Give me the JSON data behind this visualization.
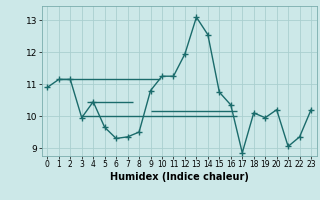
{
  "title": "",
  "xlabel": "Humidex (Indice chaleur)",
  "ylabel": "",
  "background_color": "#cce8e8",
  "line_color": "#1a6b6b",
  "grid_color": "#aacfcf",
  "x_values": [
    0,
    1,
    2,
    3,
    4,
    5,
    6,
    7,
    8,
    9,
    10,
    11,
    12,
    13,
    14,
    15,
    16,
    17,
    18,
    19,
    20,
    21,
    22,
    23
  ],
  "y_values": [
    10.9,
    11.15,
    11.15,
    9.95,
    10.45,
    9.65,
    9.3,
    9.35,
    9.5,
    10.8,
    11.25,
    11.25,
    11.95,
    13.1,
    12.55,
    10.75,
    10.35,
    8.85,
    10.1,
    9.95,
    10.2,
    9.05,
    9.35,
    10.2
  ],
  "ylim": [
    8.75,
    13.45
  ],
  "xlim": [
    -0.5,
    23.5
  ],
  "yticks": [
    9,
    10,
    11,
    12,
    13
  ],
  "xticks": [
    0,
    1,
    2,
    3,
    4,
    5,
    6,
    7,
    8,
    9,
    10,
    11,
    12,
    13,
    14,
    15,
    16,
    17,
    18,
    19,
    20,
    21,
    22,
    23
  ],
  "marker": "+",
  "linewidth": 1.0,
  "markersize": 4,
  "flat_lines": [
    {
      "y": 11.15,
      "x_start": 1.0,
      "x_end": 9.8
    },
    {
      "y": 10.45,
      "x_start": 3.5,
      "x_end": 7.5
    },
    {
      "y": 10.0,
      "x_start": 3.0,
      "x_end": 16.5
    },
    {
      "y": 10.15,
      "x_start": 9.0,
      "x_end": 16.5
    }
  ]
}
